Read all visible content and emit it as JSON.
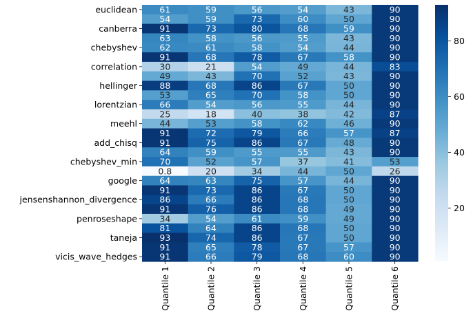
{
  "chart_data": {
    "type": "heatmap",
    "columns": [
      "Quantile 1",
      "Quantile 2",
      "Quantile 3",
      "Quantile 4",
      "Quantile 5",
      "Quantile 6"
    ],
    "row_tick_labels": [
      "euclidean",
      "canberra",
      "chebyshev",
      "correlation",
      "hellinger",
      "lorentzian",
      "meehl",
      "add_chisq",
      "chebyshev_min",
      "google",
      "jensenshannon_divergence",
      "penroseshape",
      "taneja",
      "vicis_wave_hedges"
    ],
    "values": [
      [
        61,
        59,
        56,
        54,
        43,
        90
      ],
      [
        54,
        59,
        73,
        60,
        50,
        90
      ],
      [
        91,
        73,
        80,
        68,
        59,
        90
      ],
      [
        63,
        58,
        56,
        55,
        43,
        90
      ],
      [
        62,
        61,
        58,
        54,
        44,
        90
      ],
      [
        91,
        68,
        78,
        67,
        58,
        90
      ],
      [
        30,
        21,
        54,
        49,
        44,
        83
      ],
      [
        49,
        43,
        70,
        52,
        43,
        90
      ],
      [
        88,
        68,
        86,
        67,
        50,
        90
      ],
      [
        53,
        65,
        70,
        58,
        50,
        90
      ],
      [
        66,
        54,
        56,
        55,
        44,
        90
      ],
      [
        25,
        18,
        40,
        38,
        42,
        87
      ],
      [
        44,
        53,
        58,
        62,
        46,
        90
      ],
      [
        91,
        72,
        79,
        66,
        57,
        87
      ],
      [
        91,
        75,
        86,
        67,
        48,
        90
      ],
      [
        64,
        59,
        55,
        55,
        43,
        90
      ],
      [
        70,
        52,
        57,
        37,
        41,
        53
      ],
      [
        0.8,
        20,
        34,
        44,
        50,
        26
      ],
      [
        64,
        63,
        75,
        57,
        44,
        90
      ],
      [
        91,
        73,
        86,
        67,
        50,
        90
      ],
      [
        86,
        66,
        86,
        68,
        50,
        90
      ],
      [
        91,
        76,
        86,
        68,
        49,
        90
      ],
      [
        34,
        54,
        61,
        59,
        49,
        90
      ],
      [
        81,
        64,
        86,
        68,
        50,
        90
      ],
      [
        93,
        74,
        86,
        67,
        50,
        90
      ],
      [
        91,
        65,
        78,
        67,
        57,
        90
      ],
      [
        91,
        66,
        79,
        68,
        60,
        90
      ]
    ],
    "value_range": [
      0.8,
      93
    ],
    "colormap": "Blues",
    "colorbar": {
      "ticks": [
        20,
        40,
        60,
        80
      ],
      "placement": "right"
    }
  }
}
